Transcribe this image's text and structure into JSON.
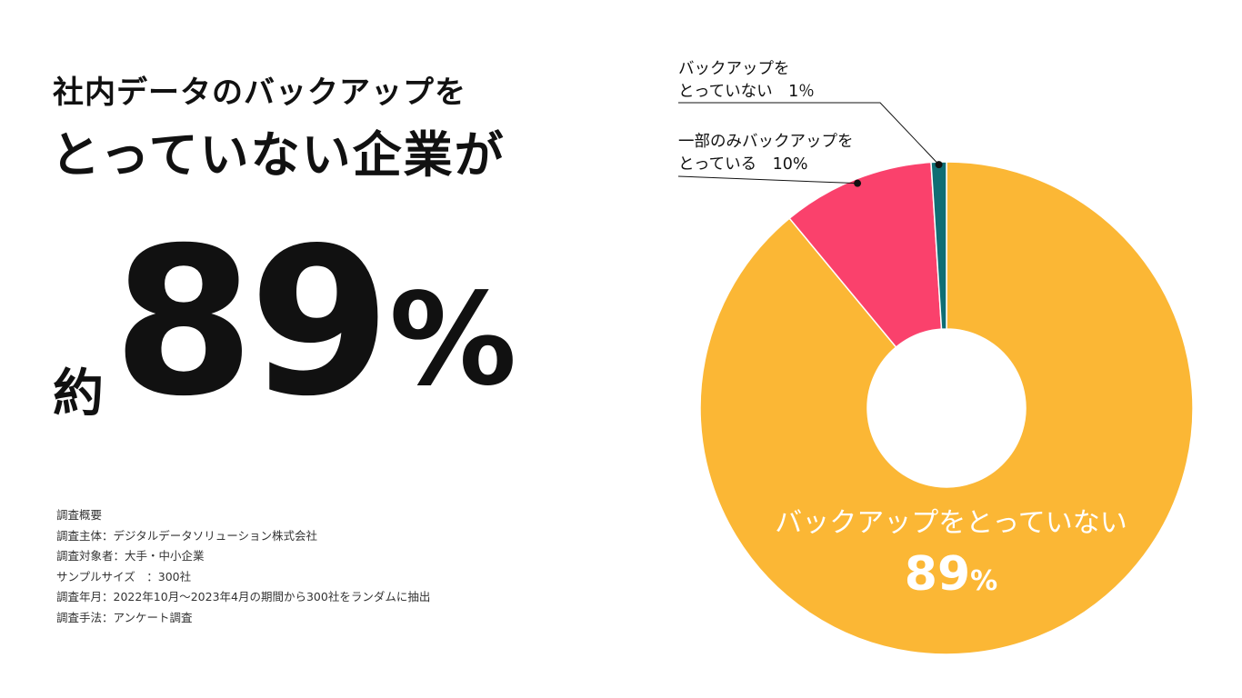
{
  "headline": {
    "line1": "社内データのバックアップを",
    "line2": "とっていない企業が",
    "prefix": "約",
    "number": "89",
    "unit": "%"
  },
  "survey": {
    "title": "調査概要",
    "lines": [
      "調査主体：デジタルデータソリューション株式会社",
      "調査対象者：大手・中小企業",
      "サンプルサイズ　：300社",
      "調査年月：2022年10月〜2023年4月の期間から300社をランダムに抽出",
      "調査手法：アンケート調査"
    ]
  },
  "callouts": {
    "no_backup_small": {
      "line1": "バックアップを",
      "line2": "とっていない　1％"
    },
    "partial": {
      "line1": "一部のみバックアップを",
      "line2": "とっている　10%"
    }
  },
  "inside_label": {
    "text": "バックアップをとっていない",
    "value": "89",
    "unit": "%"
  },
  "colors": {
    "yellow": "#FBB735",
    "pink": "#FA416C",
    "teal": "#0F6E74",
    "text": "#111111",
    "background": "#ffffff"
  },
  "chart_data": {
    "type": "pie",
    "title": "",
    "slices": [
      {
        "label": "バックアップをとっていない",
        "value": 89,
        "color": "#FBB735"
      },
      {
        "label": "一部のみバックアップをとっている",
        "value": 10,
        "color": "#FA416C"
      },
      {
        "label": "バックアップをとっていない",
        "value": 1,
        "color": "#0F6E74"
      }
    ],
    "legend": "callouts"
  }
}
